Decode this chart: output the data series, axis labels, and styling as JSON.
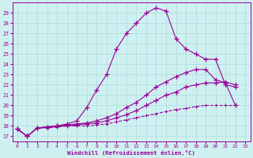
{
  "title": "",
  "xlabel": "Windchill (Refroidissement éolien,°C)",
  "bg_color": "#cff0f0",
  "grid_color": "#b0dede",
  "line_color": "#990099",
  "xlim": [
    -0.5,
    23.5
  ],
  "ylim": [
    16.5,
    30.0
  ],
  "xticks": [
    0,
    1,
    2,
    3,
    4,
    5,
    6,
    7,
    8,
    9,
    10,
    11,
    12,
    13,
    14,
    15,
    16,
    17,
    18,
    19,
    20,
    21,
    22,
    23
  ],
  "yticks": [
    17,
    18,
    19,
    20,
    21,
    22,
    23,
    24,
    25,
    26,
    27,
    28,
    29
  ],
  "series": [
    {
      "x": [
        0,
        1,
        2,
        3,
        4,
        5,
        6,
        7,
        8,
        9,
        10,
        11,
        12,
        13,
        14,
        15,
        16,
        17,
        18,
        19,
        20,
        21,
        22
      ],
      "y": [
        17.7,
        17.0,
        17.8,
        17.9,
        18.0,
        18.2,
        18.5,
        19.8,
        21.5,
        23.0,
        25.5,
        27.0,
        28.0,
        29.0,
        29.5,
        29.2,
        26.5,
        25.5,
        25.0,
        24.5,
        24.5,
        22.0,
        21.8
      ],
      "dashed": false
    },
    {
      "x": [
        0,
        1,
        2,
        3,
        4,
        5,
        6,
        7,
        8,
        9,
        10,
        11,
        12,
        13,
        14,
        15,
        16,
        17,
        18,
        19,
        20,
        21,
        22
      ],
      "y": [
        17.7,
        17.0,
        17.8,
        17.9,
        18.0,
        18.1,
        18.2,
        18.3,
        18.5,
        18.8,
        19.2,
        19.8,
        20.3,
        21.0,
        21.8,
        22.3,
        22.8,
        23.2,
        23.5,
        23.5,
        22.5,
        22.2,
        20.0
      ],
      "dashed": false
    },
    {
      "x": [
        0,
        1,
        2,
        3,
        4,
        5,
        6,
        7,
        8,
        9,
        10,
        11,
        12,
        13,
        14,
        15,
        16,
        17,
        18,
        19,
        20,
        21,
        22
      ],
      "y": [
        17.7,
        17.0,
        17.8,
        17.9,
        18.0,
        18.0,
        18.1,
        18.2,
        18.3,
        18.5,
        18.8,
        19.1,
        19.5,
        20.0,
        20.5,
        21.0,
        21.3,
        21.8,
        22.0,
        22.2,
        22.2,
        22.3,
        22.0
      ],
      "dashed": false
    },
    {
      "x": [
        0,
        1,
        2,
        3,
        4,
        5,
        6,
        7,
        8,
        9,
        10,
        11,
        12,
        13,
        14,
        15,
        16,
        17,
        18,
        19,
        20,
        21,
        22
      ],
      "y": [
        17.7,
        17.0,
        17.8,
        17.8,
        17.9,
        18.0,
        18.0,
        18.0,
        18.1,
        18.2,
        18.4,
        18.6,
        18.8,
        19.0,
        19.2,
        19.4,
        19.6,
        19.7,
        19.9,
        20.0,
        20.0,
        20.0,
        20.0
      ],
      "dashed": true
    }
  ]
}
